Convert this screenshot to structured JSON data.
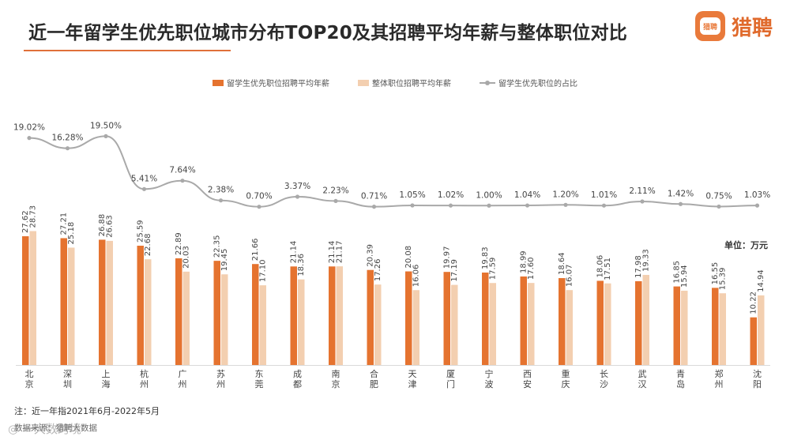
{
  "header": {
    "title": "近一年留学生优先职位城市分布TOP20及其招聘平均年薪与整体职位对比",
    "brand_name": "猎聘",
    "brand_badge": "猎聘"
  },
  "legend": {
    "series1": "留学生优先职位招聘平均年薪",
    "series2": "整体职位招聘平均年薪",
    "series3": "留学生优先职位的占比"
  },
  "unit_label": "单位：万元",
  "footer": {
    "note": "注：近一年指2021年6月-2022年5月",
    "source": "数据来源：猎聘大数据",
    "watermark": "◎ 一大数跨境"
  },
  "colors": {
    "bar1": "#e5732f",
    "bar2": "#f3cfb0",
    "line": "#a9a9a9",
    "accent": "#e0703a"
  },
  "chart_data": {
    "type": "bar",
    "categories": [
      "北京",
      "深圳",
      "上海",
      "杭州",
      "广州",
      "苏州",
      "东莞",
      "成都",
      "南京",
      "合肥",
      "天津",
      "厦门",
      "宁波",
      "西安",
      "重庆",
      "长沙",
      "武汉",
      "青岛",
      "郑州",
      "沈阳"
    ],
    "series": [
      {
        "name": "留学生优先职位招聘平均年薪",
        "values": [
          27.62,
          27.21,
          26.88,
          25.59,
          22.89,
          22.35,
          21.66,
          21.14,
          21.14,
          20.39,
          20.08,
          19.97,
          19.83,
          18.99,
          18.64,
          18.06,
          17.98,
          16.85,
          16.55,
          10.22
        ]
      },
      {
        "name": "整体职位招聘平均年薪",
        "values": [
          28.73,
          25.18,
          26.63,
          22.68,
          20.03,
          19.45,
          17.1,
          18.36,
          21.17,
          17.26,
          16.06,
          17.19,
          17.59,
          17.6,
          16.07,
          17.51,
          19.33,
          15.94,
          15.39,
          14.94
        ]
      },
      {
        "name": "留学生优先职位的占比",
        "type": "line",
        "values": [
          19.02,
          16.28,
          19.5,
          5.41,
          7.64,
          2.38,
          0.7,
          3.37,
          2.23,
          0.71,
          1.05,
          1.02,
          1.0,
          1.04,
          1.2,
          1.01,
          2.11,
          1.42,
          0.75,
          1.03
        ],
        "labels": [
          "19.02%",
          "16.28%",
          "19.50%",
          "5.41%",
          "7.64%",
          "2.38%",
          "0.70%",
          "3.37%",
          "2.23%",
          "0.71%",
          "1.05%",
          "1.02%",
          "1.00%",
          "1.04%",
          "1.20%",
          "1.01%",
          "2.11%",
          "1.42%",
          "0.75%",
          "1.03%"
        ]
      }
    ],
    "unit": "万元",
    "legend_position": "top",
    "grid": false
  }
}
